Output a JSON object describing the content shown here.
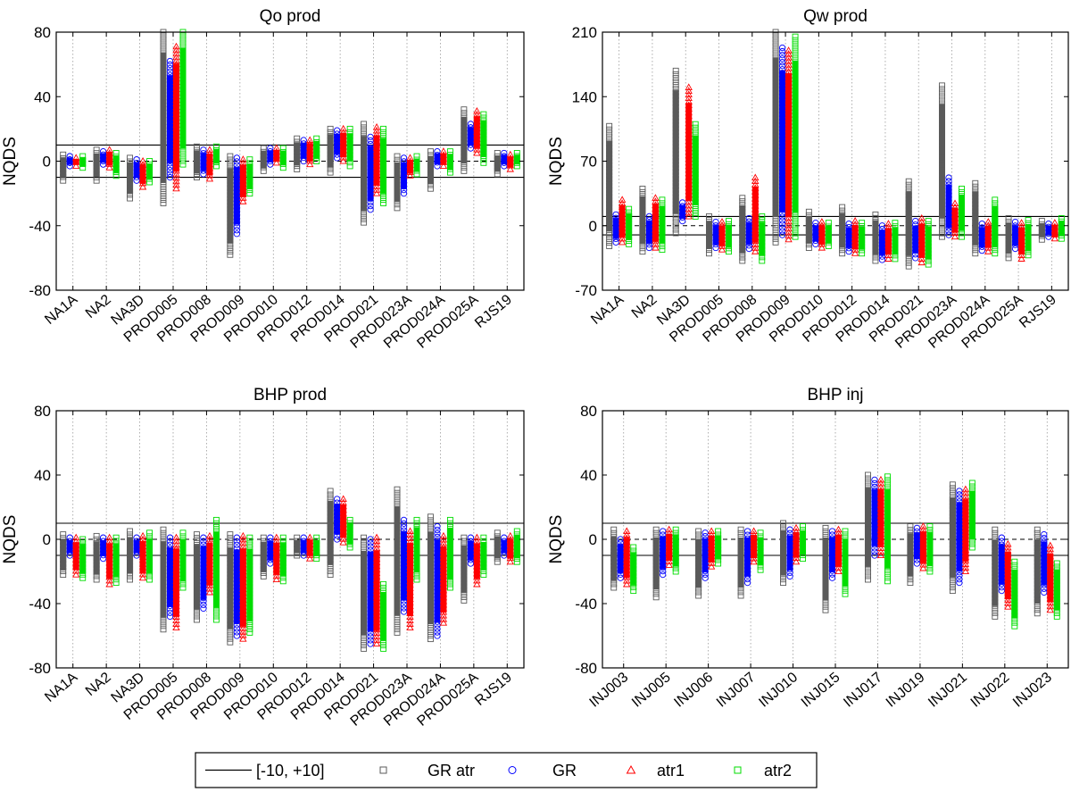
{
  "legend": {
    "items": [
      {
        "key": "limit",
        "label": "[-10, +10]",
        "marker": "line",
        "color": "#000000"
      },
      {
        "key": "gratr",
        "label": "GR atr",
        "marker": "square",
        "color": "#5a5a5a"
      },
      {
        "key": "gr",
        "label": "GR",
        "marker": "circle",
        "color": "#0000ff"
      },
      {
        "key": "atr1",
        "label": "atr1",
        "marker": "triangle",
        "color": "#ff0000"
      },
      {
        "key": "atr2",
        "label": "atr2",
        "marker": "square",
        "color": "#00dd00"
      }
    ]
  },
  "chart_data": [
    {
      "type": "scatter",
      "title": "Qo prod",
      "ylabel": "NQDS",
      "ylim": [
        -80,
        80
      ],
      "yticks": [
        -80,
        -40,
        0,
        40,
        80
      ],
      "reference_lines": {
        "solid": [
          -10,
          10
        ],
        "dashed": [
          0
        ]
      },
      "categories": [
        "NA1A",
        "NA2",
        "NA3D",
        "PROD005",
        "PROD008",
        "PROD009",
        "PROD010",
        "PROD012",
        "PROD014",
        "PROD021",
        "PROD023A",
        "PROD024A",
        "PROD025A",
        "RJS19"
      ],
      "series": [
        {
          "name": "GR atr",
          "ranges": [
            [
              -12,
              4
            ],
            [
              -12,
              7
            ],
            [
              -23,
              2
            ],
            [
              -26,
              80
            ],
            [
              -10,
              9
            ],
            [
              -58,
              3
            ],
            [
              -6,
              8
            ],
            [
              -5,
              14
            ],
            [
              -7,
              20
            ],
            [
              -38,
              23
            ],
            [
              -29,
              3
            ],
            [
              -17,
              6
            ],
            [
              -6,
              32
            ],
            [
              -8,
              5
            ]
          ]
        },
        {
          "name": "GR",
          "ranges": [
            [
              -3,
              3
            ],
            [
              -2,
              6
            ],
            [
              -12,
              1
            ],
            [
              -10,
              62
            ],
            [
              -8,
              7
            ],
            [
              -45,
              2
            ],
            [
              -2,
              8
            ],
            [
              0,
              13
            ],
            [
              2,
              19
            ],
            [
              -30,
              15
            ],
            [
              -20,
              2
            ],
            [
              -3,
              6
            ],
            [
              8,
              23
            ],
            [
              -3,
              5
            ]
          ]
        },
        {
          "name": "atr1",
          "ranges": [
            [
              -3,
              2
            ],
            [
              -4,
              7
            ],
            [
              -16,
              0
            ],
            [
              -17,
              71
            ],
            [
              -11,
              7
            ],
            [
              -25,
              1
            ],
            [
              -1,
              8
            ],
            [
              -2,
              13
            ],
            [
              0,
              20
            ],
            [
              -20,
              21
            ],
            [
              -9,
              2
            ],
            [
              -3,
              6
            ],
            [
              5,
              31
            ],
            [
              -5,
              4
            ]
          ]
        },
        {
          "name": "atr2",
          "ranges": [
            [
              -4,
              3
            ],
            [
              -9,
              5
            ],
            [
              -13,
              0
            ],
            [
              -2,
              80
            ],
            [
              -3,
              9
            ],
            [
              -20,
              1
            ],
            [
              -4,
              8
            ],
            [
              0,
              14
            ],
            [
              -3,
              20
            ],
            [
              -26,
              20
            ],
            [
              -8,
              3
            ],
            [
              -7,
              6
            ],
            [
              -1,
              29
            ],
            [
              -3,
              5
            ]
          ]
        }
      ]
    },
    {
      "type": "scatter",
      "title": "Qw prod",
      "ylabel": "NQDS",
      "ylim": [
        -70,
        210
      ],
      "yticks": [
        -70,
        0,
        70,
        140,
        210
      ],
      "reference_lines": {
        "solid": [
          -10,
          10
        ],
        "dashed": [
          0
        ]
      },
      "categories": [
        "NA1A",
        "NA2",
        "NA3D",
        "PROD005",
        "PROD008",
        "PROD009",
        "PROD010",
        "PROD012",
        "PROD014",
        "PROD021",
        "PROD023A",
        "PROD024A",
        "PROD025A",
        "RJS19"
      ],
      "series": [
        {
          "name": "GR atr",
          "ranges": [
            [
              -22,
              108
            ],
            [
              -28,
              40
            ],
            [
              -8,
              168
            ],
            [
              -30,
              10
            ],
            [
              -38,
              30
            ],
            [
              -18,
              210
            ],
            [
              -24,
              15
            ],
            [
              -30,
              20
            ],
            [
              -38,
              12
            ],
            [
              -44,
              48
            ],
            [
              -12,
              152
            ],
            [
              -30,
              46
            ],
            [
              -35,
              8
            ],
            [
              -15,
              5
            ]
          ]
        },
        {
          "name": "GR",
          "ranges": [
            [
              -18,
              12
            ],
            [
              -24,
              10
            ],
            [
              5,
              25
            ],
            [
              -24,
              4
            ],
            [
              -25,
              8
            ],
            [
              -10,
              193
            ],
            [
              -20,
              3
            ],
            [
              -28,
              2
            ],
            [
              -37,
              0
            ],
            [
              -35,
              5
            ],
            [
              -10,
              52
            ],
            [
              -27,
              2
            ],
            [
              -25,
              4
            ],
            [
              -12,
              2
            ]
          ]
        },
        {
          "name": "atr1",
          "ranges": [
            [
              -18,
              28
            ],
            [
              -24,
              30
            ],
            [
              10,
              150
            ],
            [
              -26,
              4
            ],
            [
              -28,
              52
            ],
            [
              -15,
              190
            ],
            [
              -24,
              4
            ],
            [
              -30,
              5
            ],
            [
              -36,
              2
            ],
            [
              -40,
              8
            ],
            [
              -12,
              24
            ],
            [
              -28,
              4
            ],
            [
              -36,
              3
            ],
            [
              -14,
              3
            ]
          ]
        },
        {
          "name": "atr2",
          "ranges": [
            [
              -20,
              18
            ],
            [
              -26,
              28
            ],
            [
              10,
              110
            ],
            [
              -28,
              5
            ],
            [
              -38,
              10
            ],
            [
              -12,
              205
            ],
            [
              -22,
              3
            ],
            [
              -30,
              3
            ],
            [
              -36,
              3
            ],
            [
              -42,
              5
            ],
            [
              -12,
              40
            ],
            [
              -30,
              28
            ],
            [
              -32,
              6
            ],
            [
              -14,
              8
            ]
          ]
        }
      ]
    },
    {
      "type": "scatter",
      "title": "BHP prod",
      "ylabel": "NQDS",
      "ylim": [
        -80,
        80
      ],
      "yticks": [
        -80,
        -40,
        0,
        40,
        80
      ],
      "reference_lines": {
        "solid": [
          -10,
          10
        ],
        "dashed": [
          0
        ]
      },
      "categories": [
        "NA1A",
        "NA2",
        "NA3D",
        "PROD005",
        "PROD008",
        "PROD009",
        "PROD010",
        "PROD012",
        "PROD014",
        "PROD021",
        "PROD023A",
        "PROD024A",
        "PROD025A",
        "RJS19"
      ],
      "series": [
        {
          "name": "GR atr",
          "ranges": [
            [
              -22,
              3
            ],
            [
              -25,
              2
            ],
            [
              -25,
              5
            ],
            [
              -56,
              6
            ],
            [
              -50,
              3
            ],
            [
              -64,
              3
            ],
            [
              -23,
              1
            ],
            [
              -10,
              1
            ],
            [
              -22,
              30
            ],
            [
              -68,
              1
            ],
            [
              -58,
              31
            ],
            [
              -62,
              14
            ],
            [
              -38,
              1
            ],
            [
              -14,
              4
            ]
          ]
        },
        {
          "name": "GR",
          "ranges": [
            [
              -10,
              1
            ],
            [
              -12,
              1
            ],
            [
              -10,
              1
            ],
            [
              -48,
              1
            ],
            [
              -43,
              1
            ],
            [
              -60,
              1
            ],
            [
              -15,
              1
            ],
            [
              -10,
              1
            ],
            [
              0,
              25
            ],
            [
              -65,
              0
            ],
            [
              -45,
              12
            ],
            [
              -60,
              8
            ],
            [
              -15,
              1
            ],
            [
              -10,
              1
            ]
          ]
        },
        {
          "name": "atr1",
          "ranges": [
            [
              -22,
              1
            ],
            [
              -28,
              1
            ],
            [
              -24,
              2
            ],
            [
              -55,
              1
            ],
            [
              -33,
              2
            ],
            [
              -62,
              2
            ],
            [
              -25,
              1
            ],
            [
              -12,
              1
            ],
            [
              -2,
              25
            ],
            [
              -65,
              1
            ],
            [
              -55,
              5
            ],
            [
              -52,
              2
            ],
            [
              -28,
              1
            ],
            [
              -14,
              2
            ]
          ]
        },
        {
          "name": "atr2",
          "ranges": [
            [
              -24,
              0
            ],
            [
              -27,
              1
            ],
            [
              -25,
              4
            ],
            [
              -30,
              4
            ],
            [
              -50,
              12
            ],
            [
              -58,
              1
            ],
            [
              -26,
              1
            ],
            [
              -12,
              1
            ],
            [
              -5,
              12
            ],
            [
              -68,
              -28
            ],
            [
              -25,
              12
            ],
            [
              -30,
              12
            ],
            [
              -22,
              1
            ],
            [
              -14,
              5
            ]
          ]
        }
      ]
    },
    {
      "type": "scatter",
      "title": "BHP inj",
      "ylabel": "NQDS",
      "ylim": [
        -80,
        80
      ],
      "yticks": [
        -80,
        -40,
        0,
        40,
        80
      ],
      "reference_lines": {
        "solid": [
          -10,
          10
        ],
        "dashed": [
          0
        ]
      },
      "categories": [
        "INJ003",
        "INJ005",
        "INJ006",
        "INJ007",
        "INJ010",
        "INJ015",
        "INJ017",
        "INJ019",
        "INJ021",
        "INJ022",
        "INJ023"
      ],
      "series": [
        {
          "name": "GR atr",
          "ranges": [
            [
              -30,
              6
            ],
            [
              -36,
              6
            ],
            [
              -35,
              5
            ],
            [
              -35,
              6
            ],
            [
              -27,
              10
            ],
            [
              -44,
              7
            ],
            [
              -25,
              40
            ],
            [
              -27,
              8
            ],
            [
              -32,
              34
            ],
            [
              -48,
              6
            ],
            [
              -46,
              6
            ]
          ]
        },
        {
          "name": "GR",
          "ranges": [
            [
              -24,
              0
            ],
            [
              -22,
              5
            ],
            [
              -24,
              4
            ],
            [
              -27,
              5
            ],
            [
              -23,
              6
            ],
            [
              -24,
              5
            ],
            [
              -10,
              37
            ],
            [
              -15,
              7
            ],
            [
              -27,
              30
            ],
            [
              -32,
              1
            ],
            [
              -33,
              3
            ]
          ]
        },
        {
          "name": "atr1",
          "ranges": [
            [
              -28,
              5
            ],
            [
              -16,
              6
            ],
            [
              -17,
              5
            ],
            [
              -14,
              5
            ],
            [
              -14,
              7
            ],
            [
              -20,
              6
            ],
            [
              -10,
              37
            ],
            [
              -18,
              8
            ],
            [
              -20,
              31
            ],
            [
              -42,
              -3
            ],
            [
              -44,
              -4
            ]
          ]
        },
        {
          "name": "atr2",
          "ranges": [
            [
              -32,
              -5
            ],
            [
              -20,
              6
            ],
            [
              -15,
              5
            ],
            [
              -19,
              4
            ],
            [
              -12,
              8
            ],
            [
              -34,
              5
            ],
            [
              -26,
              39
            ],
            [
              -20,
              8
            ],
            [
              -5,
              35
            ],
            [
              -54,
              -14
            ],
            [
              -48,
              -15
            ]
          ]
        }
      ]
    }
  ]
}
